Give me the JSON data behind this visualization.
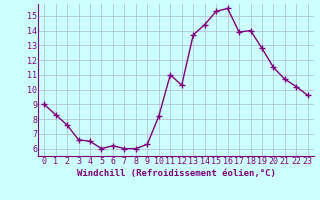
{
  "x": [
    0,
    1,
    2,
    3,
    4,
    5,
    6,
    7,
    8,
    9,
    10,
    11,
    12,
    13,
    14,
    15,
    16,
    17,
    18,
    19,
    20,
    21,
    22,
    23
  ],
  "y": [
    9.0,
    8.3,
    7.6,
    6.6,
    6.5,
    6.0,
    6.2,
    6.0,
    6.0,
    6.3,
    8.2,
    11.0,
    10.3,
    13.7,
    14.4,
    15.3,
    15.5,
    13.9,
    14.0,
    12.8,
    11.5,
    10.7,
    10.2,
    9.6
  ],
  "color": "#800080",
  "bg_color": "#ccffff",
  "grid_color": "#b0b8cc",
  "xlabel": "Windchill (Refroidissement éolien,°C)",
  "ylim": [
    5.5,
    15.8
  ],
  "xlim": [
    -0.5,
    23.5
  ],
  "yticks": [
    6,
    7,
    8,
    9,
    10,
    11,
    12,
    13,
    14,
    15
  ],
  "xticks": [
    0,
    1,
    2,
    3,
    4,
    5,
    6,
    7,
    8,
    9,
    10,
    11,
    12,
    13,
    14,
    15,
    16,
    17,
    18,
    19,
    20,
    21,
    22,
    23
  ],
  "marker": "+",
  "markersize": 4,
  "linewidth": 1.0,
  "xlabel_fontsize": 6.5,
  "tick_fontsize": 6.0
}
